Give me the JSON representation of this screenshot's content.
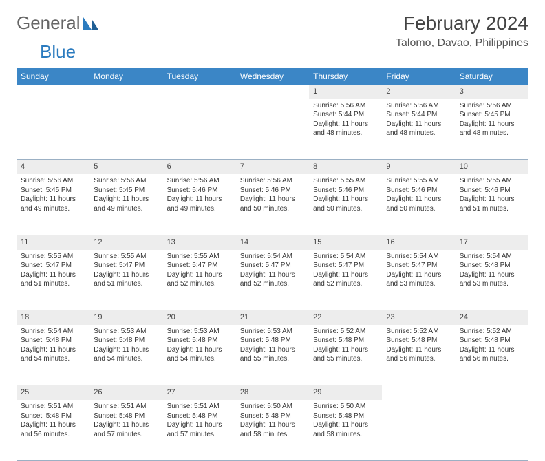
{
  "logo": {
    "text1": "General",
    "text2": "Blue"
  },
  "title": "February 2024",
  "location": "Talomo, Davao, Philippines",
  "header_bg": "#3b86c6",
  "header_fg": "#ffffff",
  "daynum_bg": "#ededed",
  "border_color": "#9bb0c4",
  "weekdays": [
    "Sunday",
    "Monday",
    "Tuesday",
    "Wednesday",
    "Thursday",
    "Friday",
    "Saturday"
  ],
  "first_weekday_index": 4,
  "days": [
    {
      "n": 1,
      "sr": "5:56 AM",
      "ss": "5:44 PM",
      "dl": "11 hours and 48 minutes."
    },
    {
      "n": 2,
      "sr": "5:56 AM",
      "ss": "5:44 PM",
      "dl": "11 hours and 48 minutes."
    },
    {
      "n": 3,
      "sr": "5:56 AM",
      "ss": "5:45 PM",
      "dl": "11 hours and 48 minutes."
    },
    {
      "n": 4,
      "sr": "5:56 AM",
      "ss": "5:45 PM",
      "dl": "11 hours and 49 minutes."
    },
    {
      "n": 5,
      "sr": "5:56 AM",
      "ss": "5:45 PM",
      "dl": "11 hours and 49 minutes."
    },
    {
      "n": 6,
      "sr": "5:56 AM",
      "ss": "5:46 PM",
      "dl": "11 hours and 49 minutes."
    },
    {
      "n": 7,
      "sr": "5:56 AM",
      "ss": "5:46 PM",
      "dl": "11 hours and 50 minutes."
    },
    {
      "n": 8,
      "sr": "5:55 AM",
      "ss": "5:46 PM",
      "dl": "11 hours and 50 minutes."
    },
    {
      "n": 9,
      "sr": "5:55 AM",
      "ss": "5:46 PM",
      "dl": "11 hours and 50 minutes."
    },
    {
      "n": 10,
      "sr": "5:55 AM",
      "ss": "5:46 PM",
      "dl": "11 hours and 51 minutes."
    },
    {
      "n": 11,
      "sr": "5:55 AM",
      "ss": "5:47 PM",
      "dl": "11 hours and 51 minutes."
    },
    {
      "n": 12,
      "sr": "5:55 AM",
      "ss": "5:47 PM",
      "dl": "11 hours and 51 minutes."
    },
    {
      "n": 13,
      "sr": "5:55 AM",
      "ss": "5:47 PM",
      "dl": "11 hours and 52 minutes."
    },
    {
      "n": 14,
      "sr": "5:54 AM",
      "ss": "5:47 PM",
      "dl": "11 hours and 52 minutes."
    },
    {
      "n": 15,
      "sr": "5:54 AM",
      "ss": "5:47 PM",
      "dl": "11 hours and 52 minutes."
    },
    {
      "n": 16,
      "sr": "5:54 AM",
      "ss": "5:47 PM",
      "dl": "11 hours and 53 minutes."
    },
    {
      "n": 17,
      "sr": "5:54 AM",
      "ss": "5:48 PM",
      "dl": "11 hours and 53 minutes."
    },
    {
      "n": 18,
      "sr": "5:54 AM",
      "ss": "5:48 PM",
      "dl": "11 hours and 54 minutes."
    },
    {
      "n": 19,
      "sr": "5:53 AM",
      "ss": "5:48 PM",
      "dl": "11 hours and 54 minutes."
    },
    {
      "n": 20,
      "sr": "5:53 AM",
      "ss": "5:48 PM",
      "dl": "11 hours and 54 minutes."
    },
    {
      "n": 21,
      "sr": "5:53 AM",
      "ss": "5:48 PM",
      "dl": "11 hours and 55 minutes."
    },
    {
      "n": 22,
      "sr": "5:52 AM",
      "ss": "5:48 PM",
      "dl": "11 hours and 55 minutes."
    },
    {
      "n": 23,
      "sr": "5:52 AM",
      "ss": "5:48 PM",
      "dl": "11 hours and 56 minutes."
    },
    {
      "n": 24,
      "sr": "5:52 AM",
      "ss": "5:48 PM",
      "dl": "11 hours and 56 minutes."
    },
    {
      "n": 25,
      "sr": "5:51 AM",
      "ss": "5:48 PM",
      "dl": "11 hours and 56 minutes."
    },
    {
      "n": 26,
      "sr": "5:51 AM",
      "ss": "5:48 PM",
      "dl": "11 hours and 57 minutes."
    },
    {
      "n": 27,
      "sr": "5:51 AM",
      "ss": "5:48 PM",
      "dl": "11 hours and 57 minutes."
    },
    {
      "n": 28,
      "sr": "5:50 AM",
      "ss": "5:48 PM",
      "dl": "11 hours and 58 minutes."
    },
    {
      "n": 29,
      "sr": "5:50 AM",
      "ss": "5:48 PM",
      "dl": "11 hours and 58 minutes."
    }
  ],
  "labels": {
    "sunrise": "Sunrise:",
    "sunset": "Sunset:",
    "daylight": "Daylight:"
  }
}
